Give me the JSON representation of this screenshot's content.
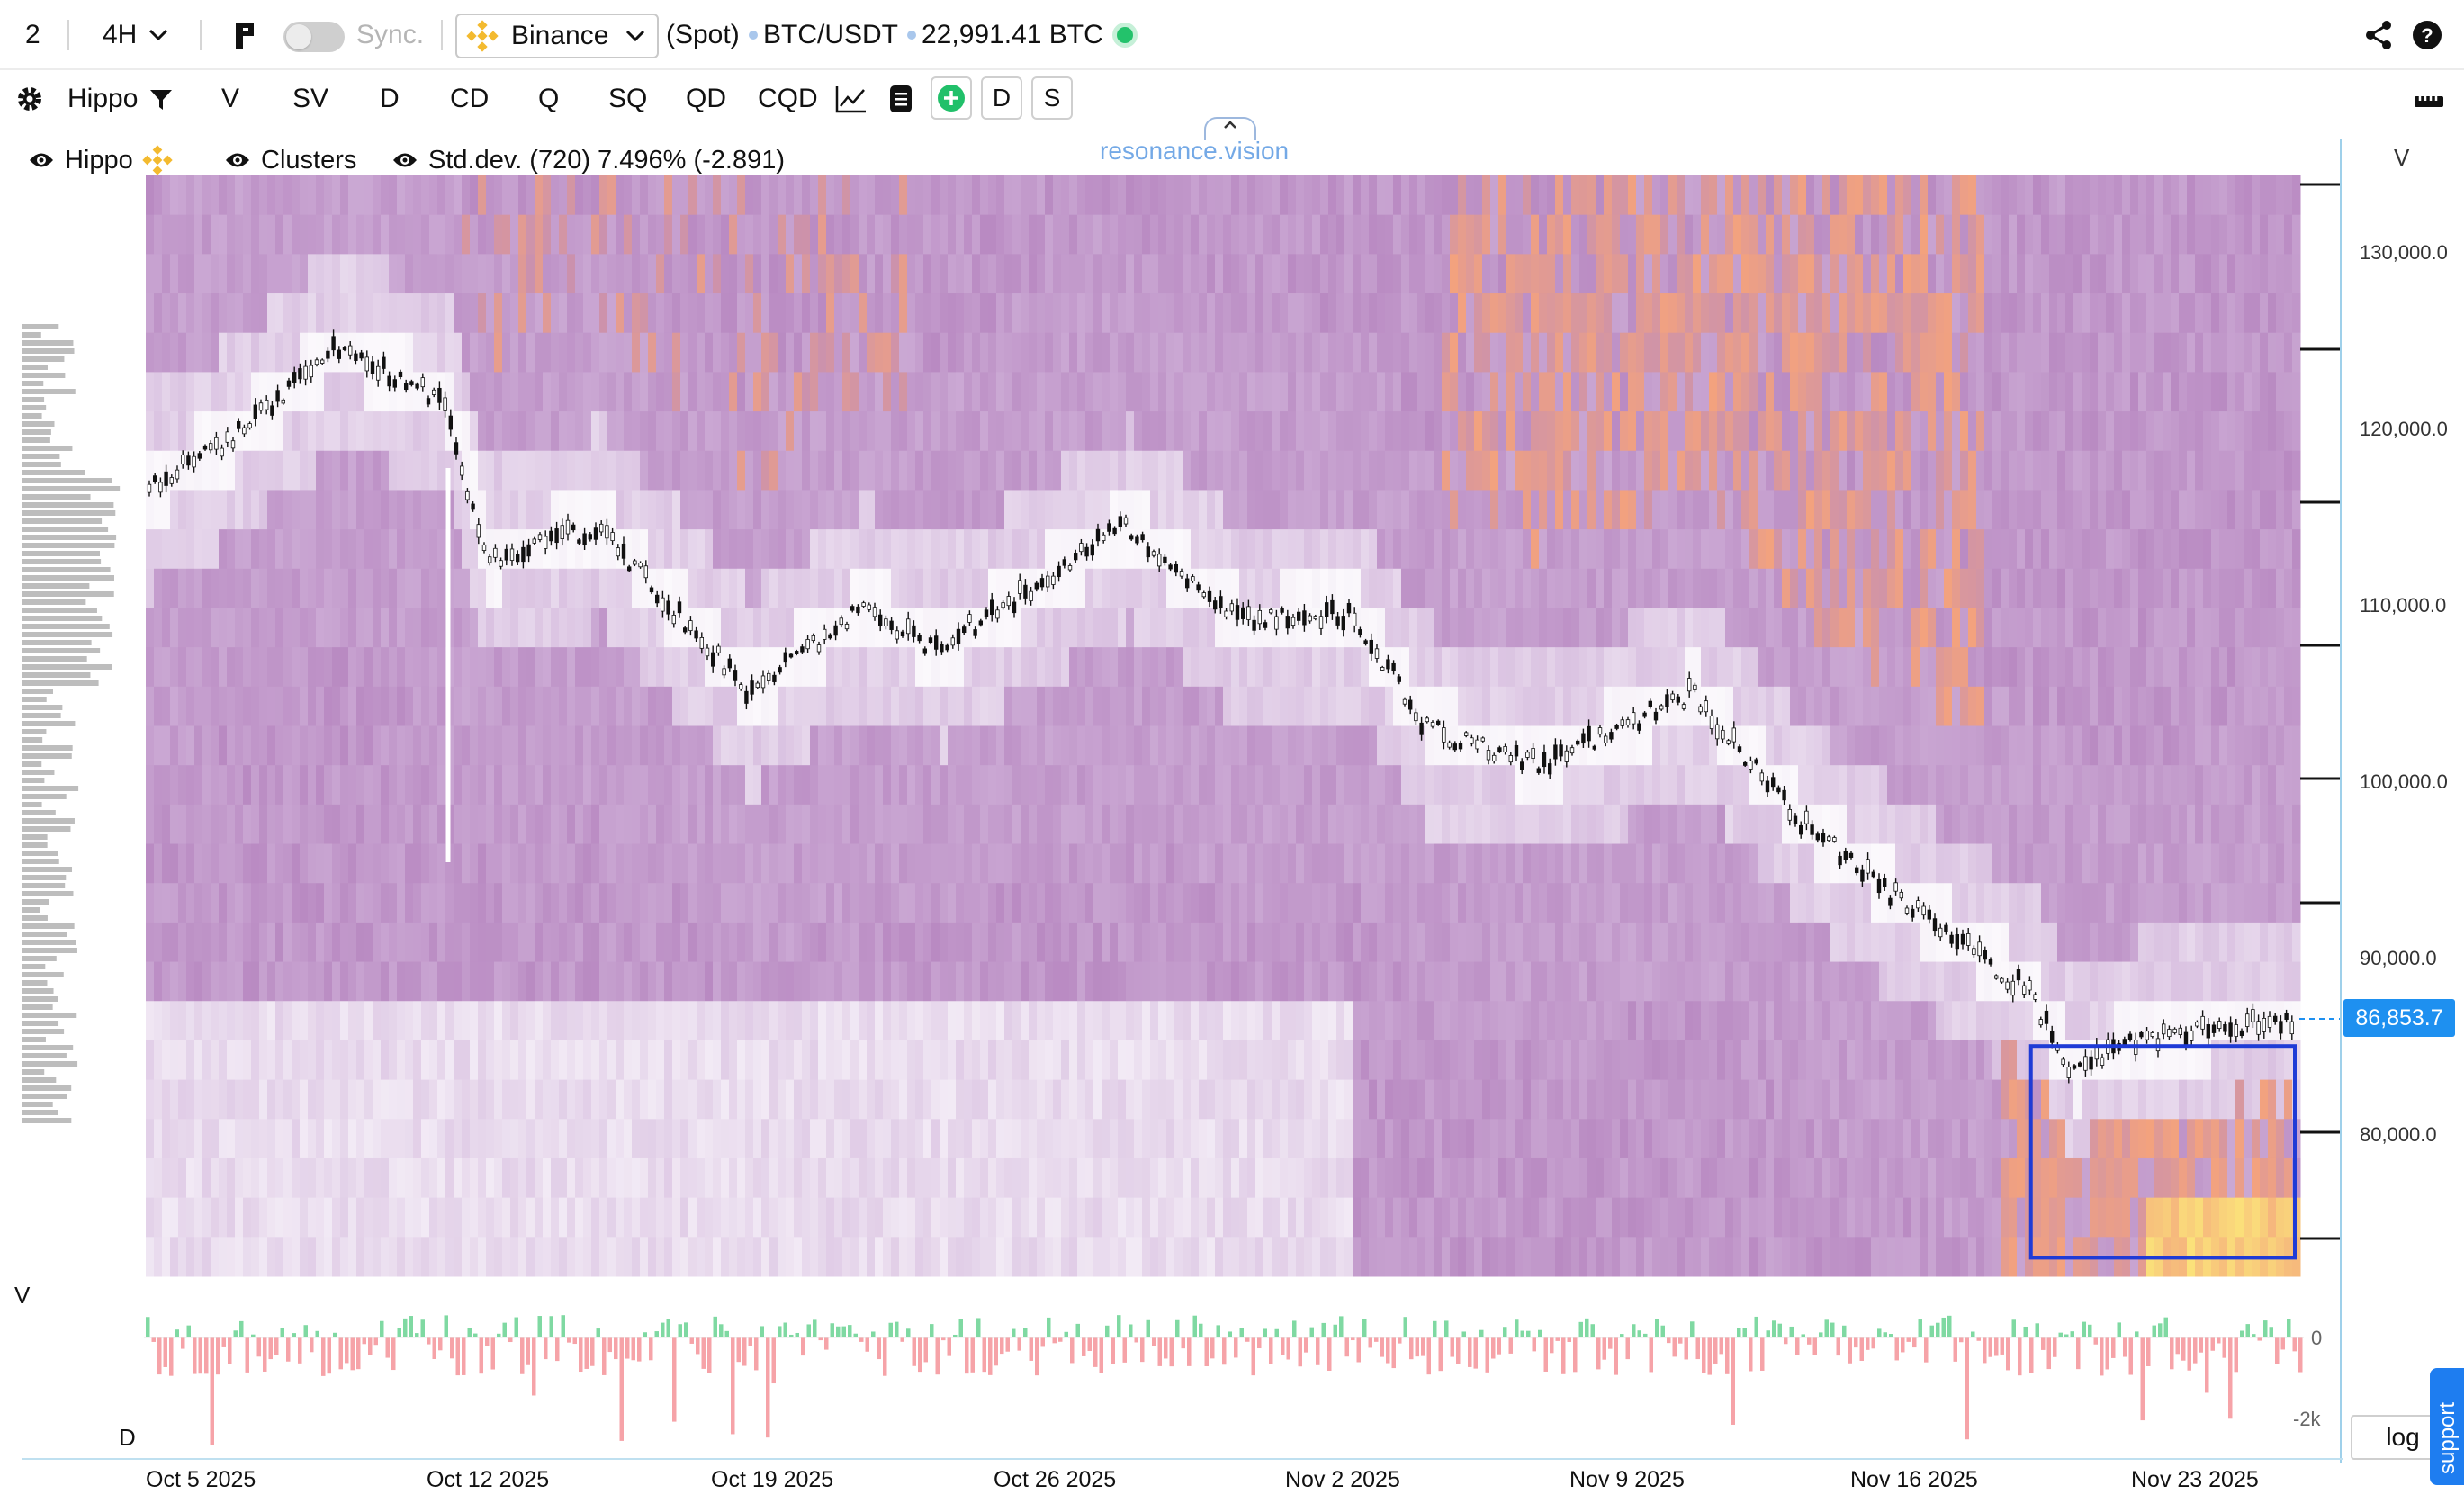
{
  "topbar": {
    "layout_count": "2",
    "timeframe": "4H",
    "sync_label": "Sync.",
    "exchange": "Binance",
    "market_type": "(Spot)",
    "symbol": "BTC/USDT",
    "volume_info": "22,991.41 BTC",
    "status_color": "#23c26b"
  },
  "toolbar": {
    "indicator_name": "Hippo",
    "buttons": [
      "V",
      "SV",
      "D",
      "CD",
      "Q",
      "SQ",
      "QD",
      "CQD"
    ],
    "d_toggle": "D",
    "s_toggle": "S",
    "icons": [
      "gear-icon",
      "filter-icon",
      "line-chart-icon",
      "document-icon",
      "plus-circle-icon",
      "ruler-icon",
      "share-icon",
      "help-icon",
      "chevron-down-icon",
      "chevron-up-icon"
    ]
  },
  "legend": {
    "hippo_label": "Hippo",
    "clusters_label": "Clusters",
    "stddev_label": "Std.dev. (720) 7.496% (-2.891)"
  },
  "watermark": "resonance.vision",
  "price_axis": {
    "header": "V",
    "ticks": [
      "130,000.0",
      "120,000.0",
      "110,000.0",
      "100,000.0",
      "90,000.0",
      "80,000.0"
    ],
    "current_price": "86,853.7"
  },
  "sub_panel": {
    "v_label": "V",
    "d_label": "D",
    "ticks": [
      "0",
      "-2k"
    ]
  },
  "dates": [
    "Oct 5 2025",
    "Oct 12 2025",
    "Oct 19 2025",
    "Oct 26 2025",
    "Nov 2 2025",
    "Nov 9 2025",
    "Nov 16 2025",
    "Nov 23 2025"
  ],
  "log_button": "log",
  "support_label": "support",
  "chart_data": {
    "type": "candlestick",
    "y_range": [
      72000,
      135000
    ],
    "x_labels": [
      "Oct 5 2025",
      "Oct 12 2025",
      "Oct 19 2025",
      "Oct 26 2025",
      "Nov 2 2025",
      "Nov 9 2025",
      "Nov 16 2025",
      "Nov 23 2025"
    ],
    "approx_close_path": [
      {
        "date": "Oct 1 2025",
        "price": 117000
      },
      {
        "date": "Oct 3 2025",
        "price": 119500
      },
      {
        "date": "Oct 6 2025",
        "price": 125000
      },
      {
        "date": "Oct 9 2025",
        "price": 122000
      },
      {
        "date": "Oct 10 2025",
        "price": 113000
      },
      {
        "date": "Oct 13 2025",
        "price": 115000
      },
      {
        "date": "Oct 17 2025",
        "price": 105500
      },
      {
        "date": "Oct 20 2025",
        "price": 110500
      },
      {
        "date": "Oct 22 2025",
        "price": 108000
      },
      {
        "date": "Oct 27 2025",
        "price": 115000
      },
      {
        "date": "Oct 30 2025",
        "price": 109500
      },
      {
        "date": "Nov 2 2025",
        "price": 110000
      },
      {
        "date": "Nov 4 2025",
        "price": 103500
      },
      {
        "date": "Nov 7 2025",
        "price": 101500
      },
      {
        "date": "Nov 11 2025",
        "price": 105500
      },
      {
        "date": "Nov 14 2025",
        "price": 98000
      },
      {
        "date": "Nov 17 2025",
        "price": 93000
      },
      {
        "date": "Nov 20 2025",
        "price": 88500
      },
      {
        "date": "Nov 21 2025",
        "price": 84000
      },
      {
        "date": "Nov 23 2025",
        "price": 86000
      },
      {
        "date": "Nov 26 2025",
        "price": 86853.7
      }
    ],
    "highlight_box": {
      "color": "#1f3bd6",
      "price_range": [
        73500,
        85500
      ],
      "date_range": [
        "Nov 20 2025",
        "Nov 27 2025"
      ]
    },
    "heatmap_colors": {
      "low": "#f2eaf5",
      "mid": "#cfb0d8",
      "high": "#b98ac2",
      "hot": "#f3a27e",
      "peak": "#fbe27a"
    },
    "volume_colors": {
      "buy": "#7fd9a2",
      "sell": "#f6a3a8"
    }
  }
}
